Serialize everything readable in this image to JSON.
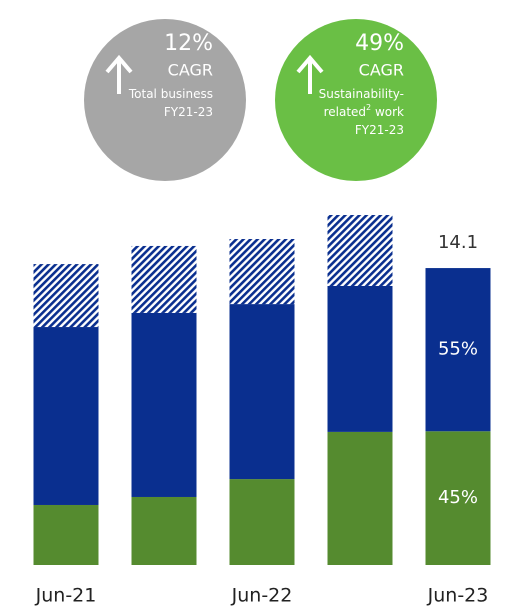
{
  "chart_data": {
    "type": "stacked_bar",
    "categories": [
      "Jun-21",
      null,
      "Jun-22",
      null,
      "Jun-23"
    ],
    "series": [
      {
        "color": "#558b2f",
        "values": [
          2.85,
          3.23,
          4.08,
          6.32,
          6.35
        ]
      },
      {
        "color": "#0a2f8f",
        "values": [
          8.45,
          8.74,
          8.31,
          6.93,
          7.75
        ]
      },
      {
        "color": "#0a2f8f",
        "pattern": "hatch",
        "values": [
          2.99,
          3.18,
          3.09,
          3.37,
          null
        ]
      }
    ],
    "ylim": [
      0,
      17
    ],
    "total": 14.1,
    "share_labels": [
      {
        "series": 1,
        "label": "55%"
      },
      {
        "series": 0,
        "label": "45%"
      }
    ],
    "badges": [
      {
        "color": "#a6a6a6",
        "rate": "12%",
        "metric": "CAGR",
        "lines": [
          [
            "Total business"
          ],
          [
            "FY21-23"
          ]
        ]
      },
      {
        "color": "#6abf45",
        "rate": "49%",
        "metric": "CAGR",
        "lines": [
          [
            "Sustainability-"
          ],
          [
            "related",
            "2",
            " work"
          ],
          [
            "FY21-23"
          ]
        ]
      }
    ]
  }
}
